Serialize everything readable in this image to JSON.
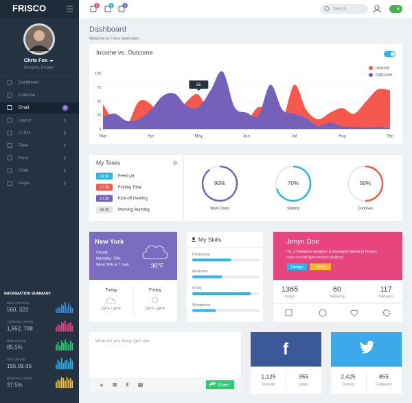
{
  "brand": "FRISCO",
  "header": {
    "badges": [
      "8",
      "3",
      "6"
    ],
    "search": "Search",
    "user_badge": "6"
  },
  "profile": {
    "name": "Chris Fox",
    "role": "Designer, Blogger"
  },
  "nav": [
    "Dashboard",
    "Calendar",
    "Email",
    "Layout",
    "UI Kits",
    "Table",
    "Form",
    "Chart",
    "Pages"
  ],
  "email_badge": "9",
  "info_summary": {
    "title": "INFORMATION SUMMARY",
    "items": [
      {
        "label": "DAILY TRAFFIC",
        "value": "560, 323",
        "color": "#3b8fdc",
        "bars": [
          3,
          5,
          4,
          7,
          6,
          9,
          5,
          8,
          6,
          4
        ]
      },
      {
        "label": "AVERAGE USERS",
        "value": "1,552, 798",
        "color": "#e8457f",
        "bars": [
          4,
          6,
          5,
          8,
          7,
          9,
          6,
          7,
          8,
          5
        ]
      },
      {
        "label": "DISK USAGE",
        "value": "85.5%",
        "color": "#2ecc71",
        "bars": [
          5,
          7,
          4,
          8,
          6,
          9,
          7,
          5,
          8,
          6
        ]
      },
      {
        "label": "CPU USAGE",
        "value": "155.09-35",
        "color": "#29b6e8",
        "bars": [
          4,
          8,
          6,
          9,
          5,
          7,
          8,
          6,
          9,
          7
        ]
      },
      {
        "label": "MEMORY USAGE",
        "value": "37.5%",
        "color": "#fbc02d",
        "bars": [
          5,
          7,
          6,
          9,
          8,
          6,
          9,
          7,
          8,
          6
        ]
      }
    ]
  },
  "page": {
    "title": "Dashboard",
    "subtitle": "Welcome to Frisco application"
  },
  "chart_data": {
    "type": "area",
    "title": "Income vs. Outcome",
    "x": [
      0,
      0.25,
      0.5,
      0.75,
      1,
      1.25,
      1.5,
      1.75,
      2,
      2.25,
      2.5,
      2.75,
      3,
      3.25,
      3.5,
      3.75,
      4,
      4.25,
      4.5,
      4.75,
      5,
      5.25,
      5.5,
      5.75,
      6
    ],
    "xlim": [
      0,
      6
    ],
    "xticks": [
      {
        "value": 0,
        "label": "Mar"
      },
      {
        "value": 1,
        "label": "Apr"
      },
      {
        "value": 2,
        "label": "May"
      },
      {
        "value": 3,
        "label": "Jun"
      },
      {
        "value": 4,
        "label": "Jul"
      },
      {
        "value": 5,
        "label": "Aug"
      },
      {
        "value": 6,
        "label": "Sep"
      }
    ],
    "ylim": [
      0,
      110
    ],
    "yticks": [
      0,
      25,
      50,
      75,
      100
    ],
    "series": [
      {
        "name": "Income",
        "color": "#f5584c",
        "values": [
          45,
          12,
          8,
          50,
          45,
          15,
          22,
          50,
          62,
          20,
          6,
          12,
          14,
          40,
          28,
          18,
          80,
          35,
          18,
          30,
          38,
          28,
          50,
          72,
          70
        ]
      },
      {
        "name": "Outcome",
        "color": "#7561ba",
        "values": [
          22,
          28,
          15,
          18,
          35,
          60,
          64,
          42,
          40,
          70,
          104,
          40,
          30,
          25,
          80,
          35,
          28,
          20,
          6,
          12,
          5,
          4,
          3,
          4,
          2
        ]
      }
    ],
    "annotation": "55",
    "legend": "top-right"
  },
  "tasks": {
    "title": "My Tasks",
    "items": [
      {
        "time": "18:30",
        "label": "Feed cat",
        "color": "#29b6e8"
      },
      {
        "time": "12:30",
        "label": "Fishing Time",
        "color": "#f5584c"
      },
      {
        "time": "10:30",
        "label": "Kick-off meeting",
        "color": "#7561ba"
      },
      {
        "time": "06:30",
        "label": "Morning Running",
        "color": "#e4e6ea"
      }
    ]
  },
  "progress": [
    {
      "value": 90,
      "label": "90%",
      "name": "Work Done",
      "color": "#7561ba"
    },
    {
      "value": 70,
      "label": "70%",
      "name": "Started",
      "color": "#29b6e8"
    },
    {
      "value": 50,
      "label": "50%",
      "name": "Continue",
      "color": "#f5584c"
    }
  ],
  "weather": {
    "city": "New York",
    "lines": [
      "Cloudy",
      "Humidity: 79%",
      "Wind: NW at 7 mph"
    ],
    "temp": "36°F",
    "forecast": [
      {
        "day": "Today",
        "temp": "28°F / 40°F"
      },
      {
        "day": "Friday",
        "temp": "29°F / 38°F"
      }
    ]
  },
  "skills": {
    "title": "My Skills",
    "items": [
      {
        "name": "Photoshop",
        "value": 58
      },
      {
        "name": "Illustrator",
        "value": 44
      },
      {
        "name": "HTML",
        "value": 87
      },
      {
        "name": "Wordpress",
        "value": 35
      }
    ]
  },
  "user_card": {
    "name": "Jenyn Doe",
    "description": [
      "I'm, a freelance designer & developer based in France",
      "runs several open-source projects"
    ],
    "tags": [
      "Design",
      "UI/UX"
    ],
    "stats": [
      {
        "value": "1365",
        "label": "blogs"
      },
      {
        "value": "60",
        "label": "following"
      },
      {
        "value": "117",
        "label": "followers"
      }
    ]
  },
  "post": {
    "placeholder": "What are you doing right now",
    "button": "Share"
  },
  "social": [
    {
      "stats": [
        {
          "value": "1,125",
          "label": "Friends"
        },
        {
          "value": "355",
          "label": "Likes"
        }
      ]
    },
    {
      "stats": [
        {
          "value": "2,425",
          "label": "Tweets"
        },
        {
          "value": "855",
          "label": "Followers"
        }
      ]
    }
  ]
}
